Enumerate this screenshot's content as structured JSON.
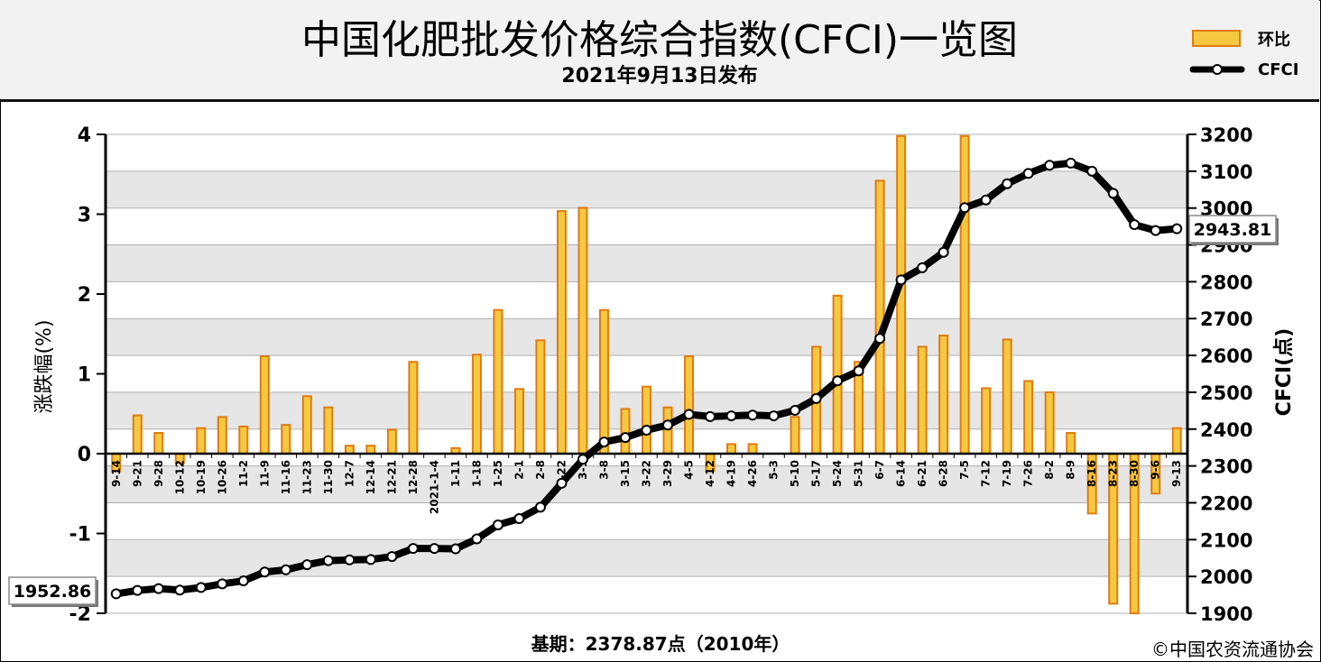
{
  "header": {
    "title": "中国化肥批发价格综合指数(CFCI)一览图",
    "subtitle": "2021年9月13日发布"
  },
  "footer": {
    "base_note": "基期：2378.87点（2010年）",
    "copyright": "©中国农资流通协会"
  },
  "colors": {
    "bar_fill": "#f5c842",
    "bar_stroke": "#e07b10",
    "line": "#000000",
    "marker_fill": "#ffffff",
    "band": "#e6e6e6"
  },
  "chart_data": {
    "type": "bar+line",
    "categories": [
      "9-14",
      "9-21",
      "9-28",
      "10-12",
      "10-19",
      "10-26",
      "11-2",
      "11-9",
      "11-16",
      "11-23",
      "11-30",
      "12-7",
      "12-14",
      "12-21",
      "12-28",
      "2021-1-4",
      "1-11",
      "1-18",
      "1-25",
      "2-1",
      "2-8",
      "2-22",
      "3-1",
      "3-8",
      "3-15",
      "3-22",
      "3-29",
      "4-5",
      "4-12",
      "4-19",
      "4-26",
      "5-3",
      "5-10",
      "5-17",
      "5-24",
      "5-31",
      "6-7",
      "6-14",
      "6-21",
      "6-28",
      "7-5",
      "7-12",
      "7-19",
      "7-26",
      "8-2",
      "8-9",
      "8-16",
      "8-23",
      "8-30",
      "9-6",
      "9-13"
    ],
    "series": [
      {
        "name": "环比",
        "axis": "left",
        "kind": "bar",
        "values": [
          -0.22,
          0.48,
          0.26,
          -0.12,
          0.32,
          0.46,
          0.34,
          1.22,
          0.36,
          0.72,
          0.58,
          0.1,
          0.1,
          0.3,
          1.15,
          0.0,
          0.07,
          1.24,
          1.8,
          0.81,
          1.42,
          3.04,
          3.08,
          1.8,
          0.56,
          0.84,
          0.58,
          1.22,
          -0.22,
          0.12,
          0.12,
          0.0,
          0.46,
          1.34,
          1.98,
          1.15,
          3.42,
          3.98,
          1.34,
          1.48,
          3.98,
          0.82,
          1.43,
          0.91,
          0.77,
          0.26,
          -0.75,
          -1.88,
          -2.0,
          -0.5,
          0.32
        ]
      },
      {
        "name": "CFCI",
        "axis": "right",
        "kind": "line",
        "values": [
          1952.86,
          1962,
          1967,
          1963,
          1970,
          1980,
          1988,
          2012,
          2018,
          2032,
          2043,
          2045,
          2046,
          2054,
          2076,
          2076,
          2075,
          2102,
          2140,
          2157,
          2188,
          2253,
          2318,
          2365,
          2377,
          2397,
          2411,
          2440,
          2434,
          2436,
          2438,
          2436,
          2451,
          2483,
          2531,
          2558,
          2646,
          2805,
          2838,
          2880,
          3001,
          3022,
          3066,
          3094,
          3116,
          3122,
          3100,
          3040,
          2955,
          2939,
          2943.81
        ]
      }
    ],
    "left_axis": {
      "label": "涨跌幅(%)",
      "min": -2,
      "max": 4,
      "ticks": [
        "4",
        "3",
        "2",
        "1",
        "0",
        "-1",
        "-2"
      ]
    },
    "right_axis": {
      "label": "CFCI(点)",
      "min": 1900,
      "max": 3200,
      "ticks": [
        "3200",
        "3100",
        "3000",
        "2900",
        "2800",
        "2700",
        "2600",
        "2500",
        "2400",
        "2300",
        "2200",
        "2100",
        "2000",
        "1900"
      ]
    },
    "annotations": {
      "start_value": "1952.86",
      "end_value": "2943.81"
    },
    "legend": {
      "position": "top-right",
      "bar_label": "环比",
      "line_label": "CFCI"
    },
    "grid": true
  }
}
